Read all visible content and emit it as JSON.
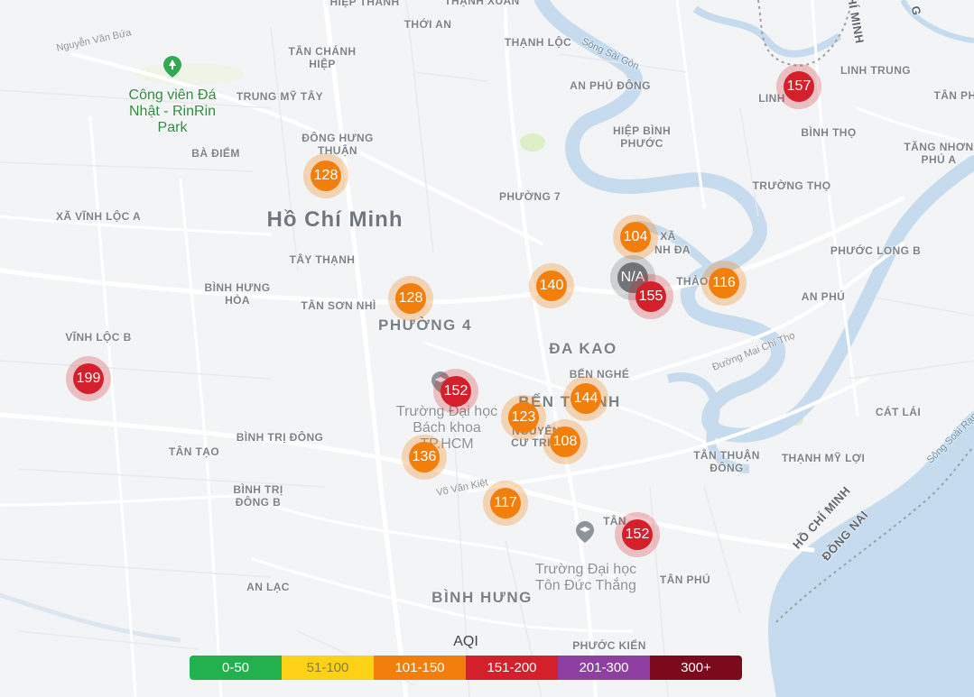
{
  "map": {
    "city_label": "Hồ Chí Minh",
    "district_labels": [
      "PHƯỜNG 4",
      "ĐA KAO",
      "BẾN THÀNH",
      "BÌNH HƯNG"
    ],
    "place_labels": [
      "HIỆP THÀNH",
      "THẠNH XUÂN",
      "THỚI AN",
      "THẠNH LỘC",
      "TÂN CHÁNH HIỆP",
      "TRUNG MỸ TÂY",
      "ĐÔNG HƯNG THUẬN",
      "BÀ ĐIỂM",
      "XÃ VĨNH LỘC A",
      "TÂY THẠNH",
      "BÌNH HƯNG HÒA",
      "TÂN SƠN NHÌ",
      "VĨNH LỘC B",
      "TÂN TẠO",
      "BÌNH TRỊ ĐÔNG",
      "BÌNH TRỊ ĐÔNG B",
      "AN LẠC",
      "AN PHÚ ĐÔNG",
      "HIỆP BÌNH PHƯỚC",
      "PHƯỜNG 7",
      "LINH TRUNG",
      "LINH",
      "BÌNH THỌ",
      "TĂNG NHƠN PHÚ A",
      "TÂN PH",
      "TRƯỜNG THỌ",
      "PHƯỚC LONG B",
      "AN PHÚ",
      "THẢO",
      "BẾN NGHÉ",
      "CÁT LÁI",
      "TÂN THUẬN ĐÔNG",
      "THẠNH MỸ LỢI",
      "TÂN PHÚ",
      "PHƯỚC KIỂN",
      "TÂN",
      "CƯ TRI",
      "NGUYỄN",
      "XÃ",
      "NH ĐA"
    ],
    "street_labels": [
      "Nguyễn Văn Bứa",
      "Đường Mai Chí Thọ",
      "Võ Văn Kiệt"
    ],
    "river_labels": [
      "Sông Sài Gòn",
      "Sông Soài Rạp"
    ],
    "border_labels": [
      "HỒ CHÍ MINH",
      "ĐỒNG NAI",
      "HÍ MINH",
      "G"
    ],
    "poi_labels": [
      "Công viên Đá Nhật - RinRin Park",
      "Trường Đại học Bách khoa TP.HCM",
      "Trường Đại học Tôn Đức Thắng"
    ]
  },
  "markers": [
    {
      "aqi": "157",
      "level": "red"
    },
    {
      "aqi": "128",
      "level": "orange"
    },
    {
      "aqi": "104",
      "level": "orange"
    },
    {
      "aqi": "N/A",
      "level": "gray"
    },
    {
      "aqi": "155",
      "level": "red"
    },
    {
      "aqi": "116",
      "level": "orange"
    },
    {
      "aqi": "140",
      "level": "orange"
    },
    {
      "aqi": "128",
      "level": "orange"
    },
    {
      "aqi": "199",
      "level": "red"
    },
    {
      "aqi": "152",
      "level": "red"
    },
    {
      "aqi": "144",
      "level": "orange"
    },
    {
      "aqi": "123",
      "level": "orange"
    },
    {
      "aqi": "108",
      "level": "orange"
    },
    {
      "aqi": "136",
      "level": "orange"
    },
    {
      "aqi": "117",
      "level": "orange"
    },
    {
      "aqi": "152",
      "level": "red"
    }
  ],
  "legend": {
    "title": "AQI",
    "items": [
      {
        "label": "0-50",
        "color": "#23b14d"
      },
      {
        "label": "51-100",
        "color": "#fcd116"
      },
      {
        "label": "101-150",
        "color": "#f27e0c"
      },
      {
        "label": "151-200",
        "color": "#d4202a"
      },
      {
        "label": "201-300",
        "color": "#8e3fa1"
      },
      {
        "label": "300+",
        "color": "#7b0a1d"
      }
    ]
  },
  "colors": {
    "water": "#c6dcee",
    "land": "#f3f4f5",
    "road": "#ffffff",
    "park": "#d9ecc4"
  }
}
